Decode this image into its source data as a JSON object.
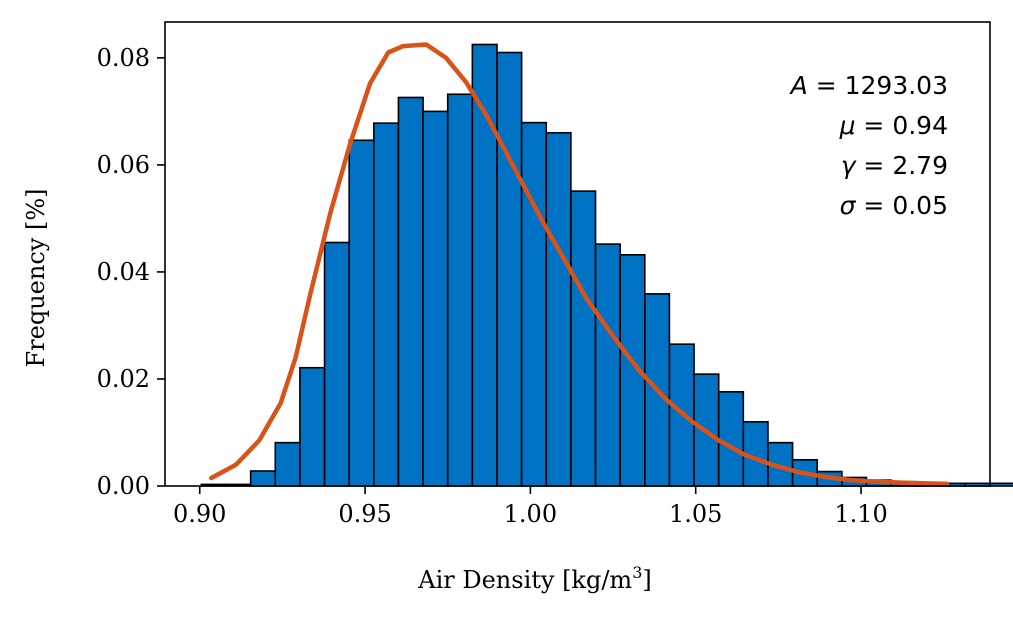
{
  "chart_data": {
    "type": "bar",
    "xlabel_prefix": "Air Density [kg/m",
    "xlabel_sup": "3",
    "xlabel_suffix": "]",
    "ylabel": "Frequency [%]",
    "xlim": [
      0.8895,
      1.139
    ],
    "ylim": [
      0.0,
      0.0867
    ],
    "xticks": [
      0.9,
      0.95,
      1.0,
      1.05,
      1.1
    ],
    "xtick_labels": [
      "0.90",
      "0.95",
      "1.00",
      "1.05",
      "1.10"
    ],
    "yticks": [
      0.0,
      0.02,
      0.04,
      0.06,
      0.08
    ],
    "ytick_labels": [
      "0.00",
      "0.02",
      "0.04",
      "0.06",
      "0.08"
    ],
    "bin_start": 0.9005,
    "bin_width": 0.00745,
    "values": [
      0.0003,
      0.0003,
      0.0028,
      0.0081,
      0.0221,
      0.0455,
      0.0646,
      0.0678,
      0.0726,
      0.07,
      0.0732,
      0.0825,
      0.081,
      0.0679,
      0.066,
      0.0551,
      0.0452,
      0.0432,
      0.0359,
      0.0265,
      0.0209,
      0.0176,
      0.012,
      0.0081,
      0.0049,
      0.0027,
      0.0016,
      0.0011,
      0.0008,
      0.0006,
      0.0005,
      0.0005,
      0.0005,
      0.0004,
      0.0003,
      0.0003,
      0.0003,
      0.0003,
      0.0003,
      0.0002
    ],
    "fit_x": [
      0.9035,
      0.911,
      0.918,
      0.9245,
      0.929,
      0.9335,
      0.9395,
      0.9455,
      0.9515,
      0.957,
      0.9615,
      0.9685,
      0.9745,
      0.9805,
      0.9865,
      0.9925,
      0.9985,
      1.0045,
      1.011,
      1.017,
      1.025,
      1.033,
      1.041,
      1.049,
      1.057,
      1.065,
      1.073,
      1.081,
      1.089,
      1.097,
      1.105,
      1.113,
      1.126
    ],
    "fit_y": [
      0.0015,
      0.004,
      0.0085,
      0.0155,
      0.024,
      0.036,
      0.051,
      0.064,
      0.0752,
      0.081,
      0.0822,
      0.0825,
      0.08,
      0.0755,
      0.0695,
      0.0625,
      0.0555,
      0.0485,
      0.0415,
      0.035,
      0.028,
      0.0215,
      0.0162,
      0.012,
      0.0085,
      0.0058,
      0.004,
      0.0026,
      0.0017,
      0.0011,
      0.0008,
      0.0006,
      0.0004
    ],
    "bar_color": "#0072c3",
    "bar_edge_color": "#000000",
    "fit_color": "#d95319",
    "annotations": [
      {
        "name": "A",
        "value": "1293.03"
      },
      {
        "name": "μ",
        "value": "0.94"
      },
      {
        "name": "γ",
        "value": "2.79"
      },
      {
        "name": "σ",
        "value": "0.05"
      }
    ],
    "grid": false
  }
}
